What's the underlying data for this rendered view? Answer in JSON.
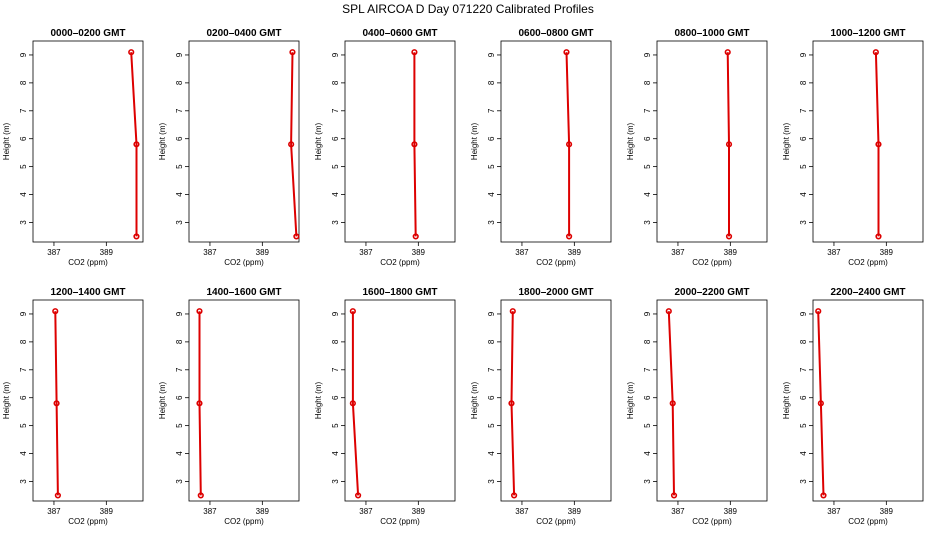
{
  "figure": {
    "title": "SPL AIRCOA D  Day 071220  Calibrated Profiles"
  },
  "style": {
    "line_color": "#dd0000",
    "point_color": "#dd0000",
    "axis_color": "#000000",
    "background": "#ffffff"
  },
  "chart_data": [
    {
      "type": "line",
      "title": "0000–0200 GMT",
      "xlabel": "CO2 (ppm)",
      "ylabel": "Height (m)",
      "xlim": [
        386.2,
        390.4
      ],
      "ylim": [
        2.3,
        9.5
      ],
      "xticks": [
        387,
        389
      ],
      "yticks": [
        3,
        4,
        5,
        6,
        7,
        8,
        9
      ],
      "grid": false,
      "series": [
        {
          "x": [
            389.95,
            390.15,
            390.15
          ],
          "y": [
            9.1,
            5.8,
            2.5
          ],
          "marker": "circle"
        }
      ]
    },
    {
      "type": "line",
      "title": "0200–0400 GMT",
      "xlabel": "CO2 (ppm)",
      "ylabel": "Height (m)",
      "xlim": [
        386.2,
        390.4
      ],
      "ylim": [
        2.3,
        9.5
      ],
      "xticks": [
        387,
        389
      ],
      "yticks": [
        3,
        4,
        5,
        6,
        7,
        8,
        9
      ],
      "grid": false,
      "series": [
        {
          "x": [
            390.15,
            390.1,
            390.3
          ],
          "y": [
            9.1,
            5.8,
            2.5
          ],
          "marker": "circle"
        }
      ]
    },
    {
      "type": "line",
      "title": "0400–0600 GMT",
      "xlabel": "CO2 (ppm)",
      "ylabel": "Height (m)",
      "xlim": [
        386.2,
        390.4
      ],
      "ylim": [
        2.3,
        9.5
      ],
      "xticks": [
        387,
        389
      ],
      "yticks": [
        3,
        4,
        5,
        6,
        7,
        8,
        9
      ],
      "grid": false,
      "series": [
        {
          "x": [
            388.85,
            388.85,
            388.9
          ],
          "y": [
            9.1,
            5.8,
            2.5
          ],
          "marker": "circle"
        }
      ]
    },
    {
      "type": "line",
      "title": "0600–0800 GMT",
      "xlabel": "CO2 (ppm)",
      "ylabel": "Height (m)",
      "xlim": [
        386.2,
        390.4
      ],
      "ylim": [
        2.3,
        9.5
      ],
      "xticks": [
        387,
        389
      ],
      "yticks": [
        3,
        4,
        5,
        6,
        7,
        8,
        9
      ],
      "grid": false,
      "series": [
        {
          "x": [
            388.7,
            388.8,
            388.8
          ],
          "y": [
            9.1,
            5.8,
            2.5
          ],
          "marker": "circle"
        }
      ]
    },
    {
      "type": "line",
      "title": "0800–1000 GMT",
      "xlabel": "CO2 (ppm)",
      "ylabel": "Height (m)",
      "xlim": [
        386.2,
        390.4
      ],
      "ylim": [
        2.3,
        9.5
      ],
      "xticks": [
        387,
        389
      ],
      "yticks": [
        3,
        4,
        5,
        6,
        7,
        8,
        9
      ],
      "grid": false,
      "series": [
        {
          "x": [
            388.9,
            388.95,
            388.95
          ],
          "y": [
            9.1,
            5.8,
            2.5
          ],
          "marker": "circle"
        }
      ]
    },
    {
      "type": "line",
      "title": "1000–1200 GMT",
      "xlabel": "CO2 (ppm)",
      "ylabel": "Height (m)",
      "xlim": [
        386.2,
        390.4
      ],
      "ylim": [
        2.3,
        9.5
      ],
      "xticks": [
        387,
        389
      ],
      "yticks": [
        3,
        4,
        5,
        6,
        7,
        8,
        9
      ],
      "grid": false,
      "series": [
        {
          "x": [
            388.6,
            388.7,
            388.7
          ],
          "y": [
            9.1,
            5.8,
            2.5
          ],
          "marker": "circle"
        }
      ]
    },
    {
      "type": "line",
      "title": "1200–1400 GMT",
      "xlabel": "CO2 (ppm)",
      "ylabel": "Height (m)",
      "xlim": [
        386.2,
        390.4
      ],
      "ylim": [
        2.3,
        9.5
      ],
      "xticks": [
        387,
        389
      ],
      "yticks": [
        3,
        4,
        5,
        6,
        7,
        8,
        9
      ],
      "grid": false,
      "series": [
        {
          "x": [
            387.05,
            387.1,
            387.15
          ],
          "y": [
            9.1,
            5.8,
            2.5
          ],
          "marker": "circle"
        }
      ]
    },
    {
      "type": "line",
      "title": "1400–1600 GMT",
      "xlabel": "CO2 (ppm)",
      "ylabel": "Height (m)",
      "xlim": [
        386.2,
        390.4
      ],
      "ylim": [
        2.3,
        9.5
      ],
      "xticks": [
        387,
        389
      ],
      "yticks": [
        3,
        4,
        5,
        6,
        7,
        8,
        9
      ],
      "grid": false,
      "series": [
        {
          "x": [
            386.6,
            386.6,
            386.65
          ],
          "y": [
            9.1,
            5.8,
            2.5
          ],
          "marker": "circle"
        }
      ]
    },
    {
      "type": "line",
      "title": "1600–1800 GMT",
      "xlabel": "CO2 (ppm)",
      "ylabel": "Height (m)",
      "xlim": [
        386.2,
        390.4
      ],
      "ylim": [
        2.3,
        9.5
      ],
      "xticks": [
        387,
        389
      ],
      "yticks": [
        3,
        4,
        5,
        6,
        7,
        8,
        9
      ],
      "grid": false,
      "series": [
        {
          "x": [
            386.5,
            386.5,
            386.7
          ],
          "y": [
            9.1,
            5.8,
            2.5
          ],
          "marker": "circle"
        }
      ]
    },
    {
      "type": "line",
      "title": "1800–2000 GMT",
      "xlabel": "CO2 (ppm)",
      "ylabel": "Height (m)",
      "xlim": [
        386.2,
        390.4
      ],
      "ylim": [
        2.3,
        9.5
      ],
      "xticks": [
        387,
        389
      ],
      "yticks": [
        3,
        4,
        5,
        6,
        7,
        8,
        9
      ],
      "grid": false,
      "series": [
        {
          "x": [
            386.65,
            386.6,
            386.7
          ],
          "y": [
            9.1,
            5.8,
            2.5
          ],
          "marker": "circle"
        }
      ]
    },
    {
      "type": "line",
      "title": "2000–2200 GMT",
      "xlabel": "CO2 (ppm)",
      "ylabel": "Height (m)",
      "xlim": [
        386.2,
        390.4
      ],
      "ylim": [
        2.3,
        9.5
      ],
      "xticks": [
        387,
        389
      ],
      "yticks": [
        3,
        4,
        5,
        6,
        7,
        8,
        9
      ],
      "grid": false,
      "series": [
        {
          "x": [
            386.65,
            386.8,
            386.85
          ],
          "y": [
            9.1,
            5.8,
            2.5
          ],
          "marker": "circle"
        }
      ]
    },
    {
      "type": "line",
      "title": "2200–2400 GMT",
      "xlabel": "CO2 (ppm)",
      "ylabel": "Height (m)",
      "xlim": [
        386.2,
        390.4
      ],
      "ylim": [
        2.3,
        9.5
      ],
      "xticks": [
        387,
        389
      ],
      "yticks": [
        3,
        4,
        5,
        6,
        7,
        8,
        9
      ],
      "grid": false,
      "series": [
        {
          "x": [
            386.4,
            386.5,
            386.6
          ],
          "y": [
            9.1,
            5.8,
            2.5
          ],
          "marker": "circle"
        }
      ]
    }
  ]
}
